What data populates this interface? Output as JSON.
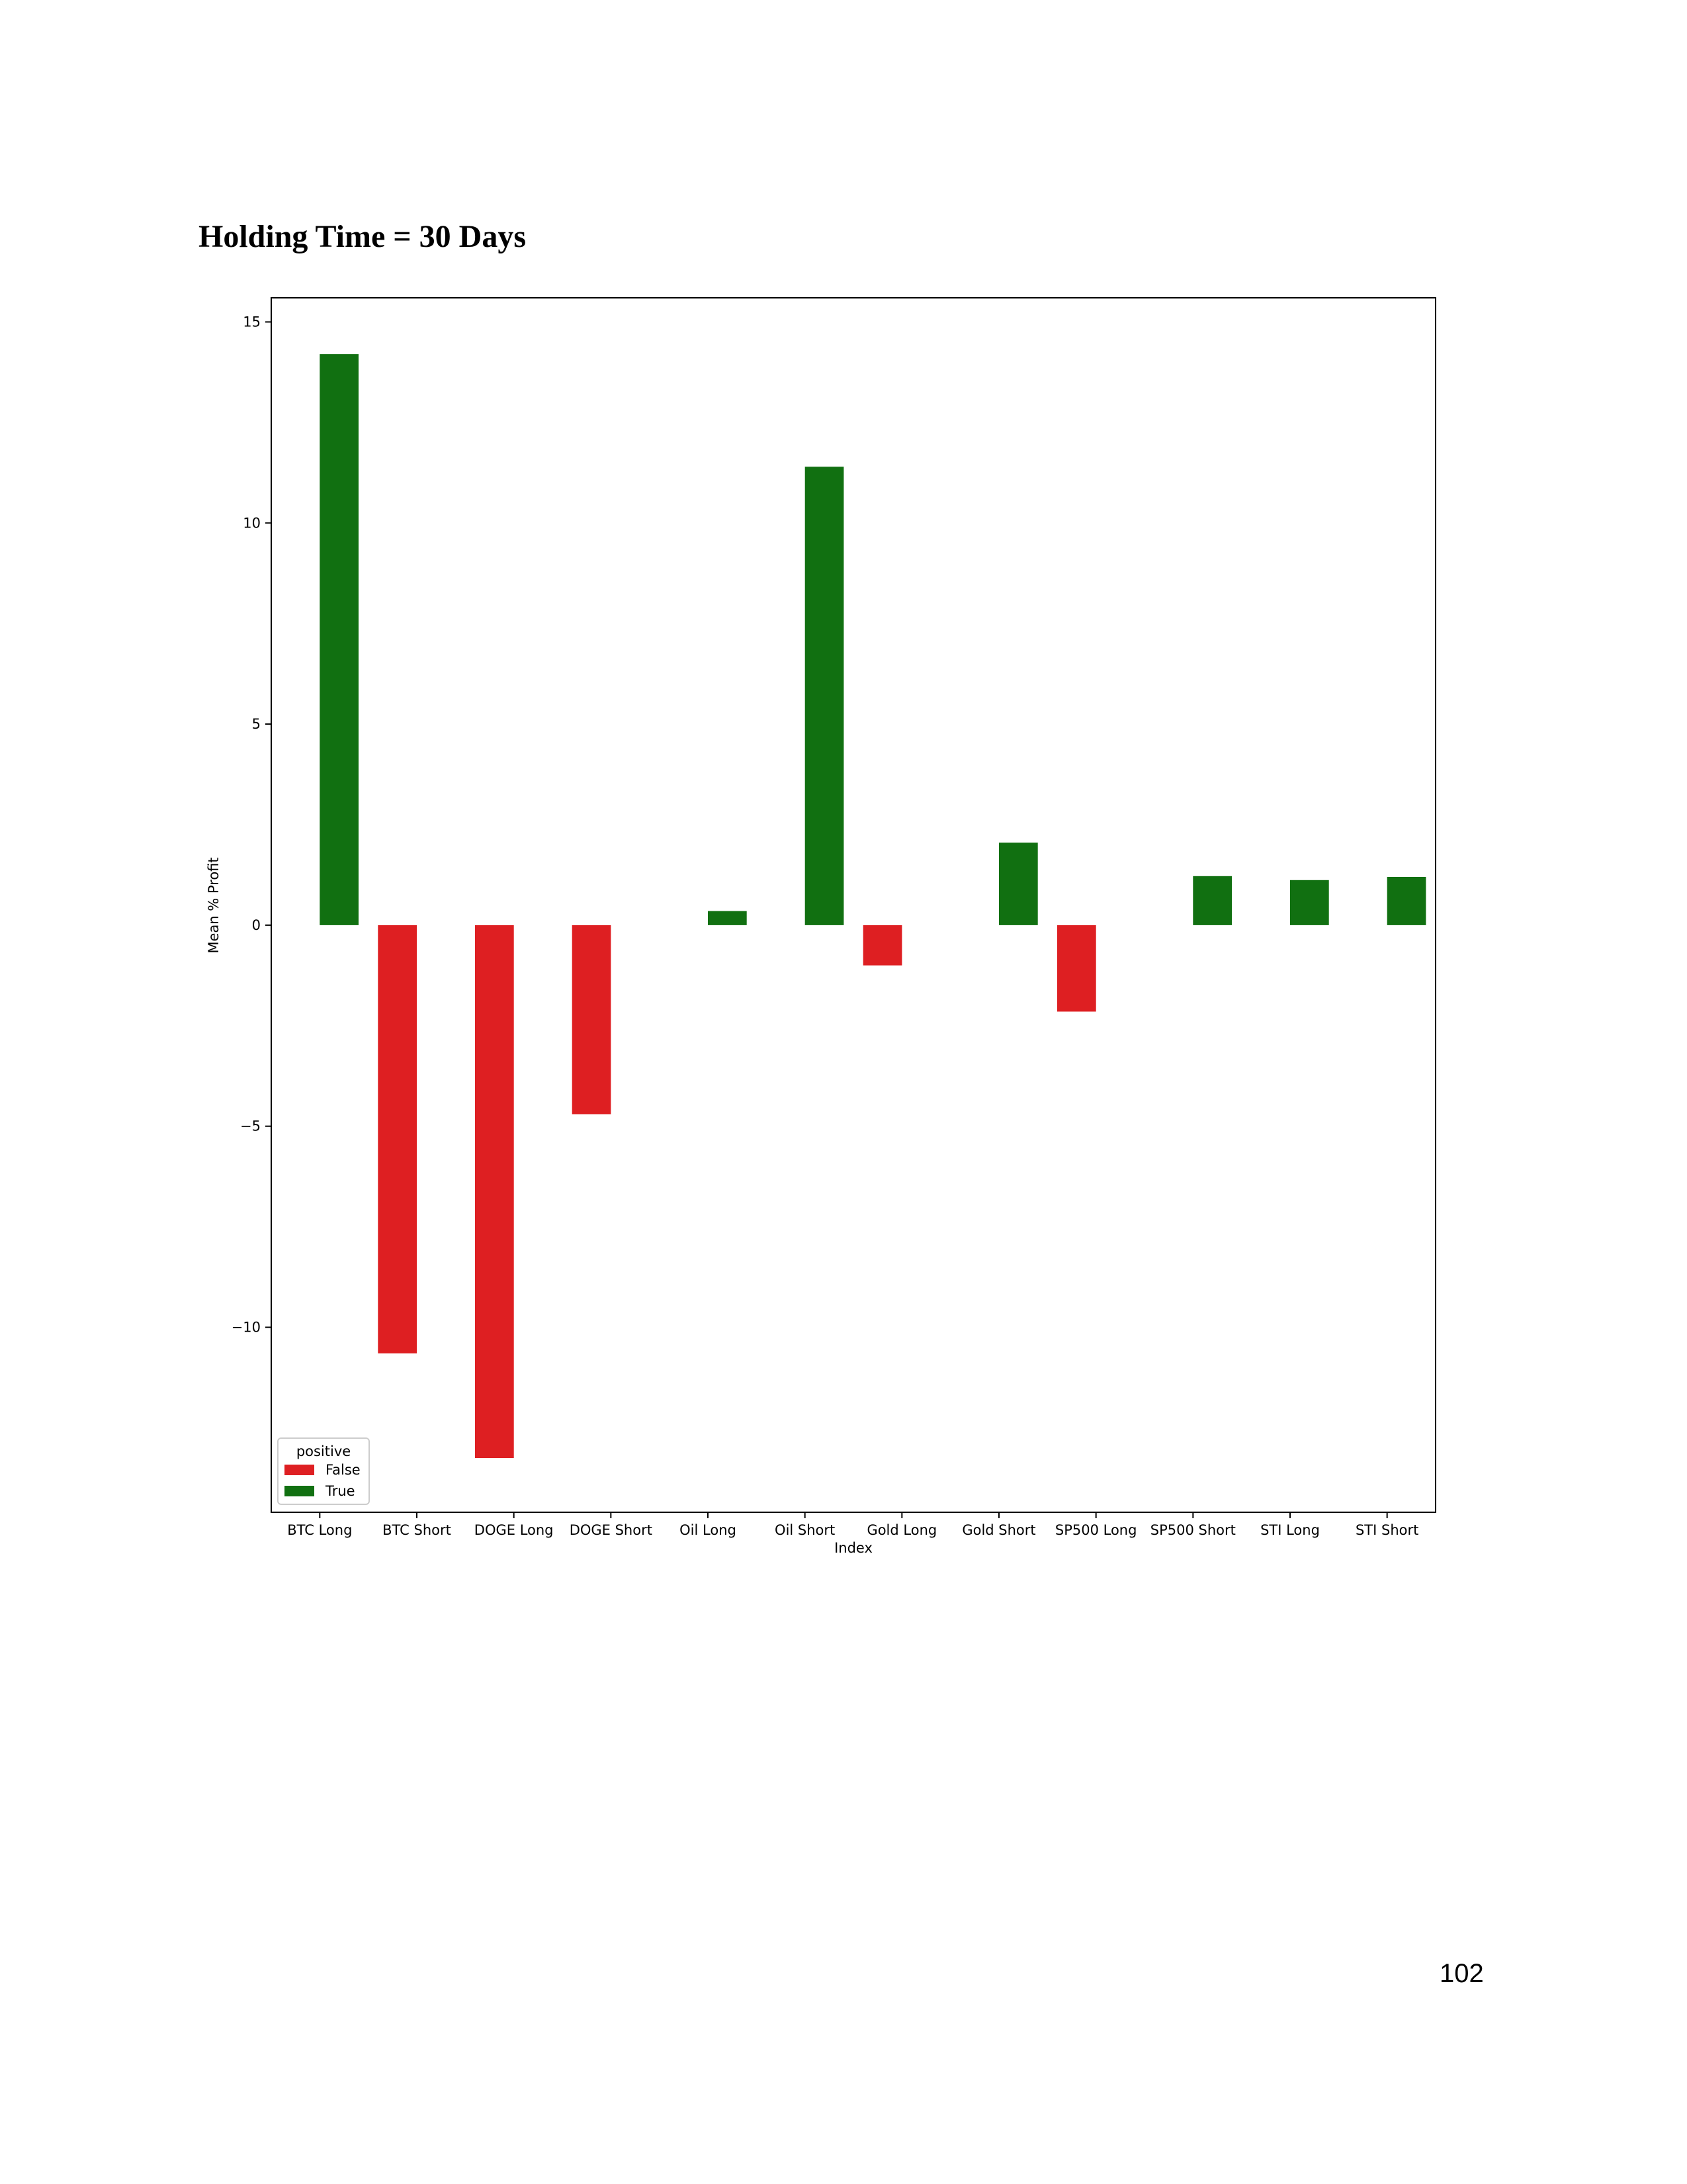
{
  "page": {
    "title": "Holding Time = 30 Days",
    "page_number": "102"
  },
  "chart_data": {
    "type": "bar",
    "title": "",
    "xlabel": "Index",
    "ylabel": "Mean % Profit",
    "categories": [
      "BTC Long",
      "BTC Short",
      "DOGE Long",
      "DOGE Short",
      "Oil Long",
      "Oil Short",
      "Gold Long",
      "Gold Short",
      "SP500 Long",
      "SP500 Short",
      "STI Long",
      "STI Short"
    ],
    "series": [
      {
        "name": "False",
        "color": "#de1f22",
        "values": [
          null,
          -10.65,
          -13.25,
          -4.7,
          null,
          null,
          -1.0,
          null,
          -2.15,
          null,
          null,
          null
        ]
      },
      {
        "name": "True",
        "color": "#117011",
        "values": [
          14.2,
          null,
          null,
          null,
          0.35,
          11.4,
          null,
          2.05,
          null,
          1.22,
          1.12,
          1.2
        ]
      }
    ],
    "legend": {
      "title": "positive",
      "position": "lower-left",
      "entries": [
        "False",
        "True"
      ]
    },
    "yticks": [
      15,
      10,
      5,
      0,
      -5,
      -10
    ],
    "ytick_labels": [
      "15",
      "10",
      "5",
      "0",
      "−5",
      "−10"
    ],
    "ylim": [
      -14.6,
      15.6
    ],
    "grid": false
  }
}
